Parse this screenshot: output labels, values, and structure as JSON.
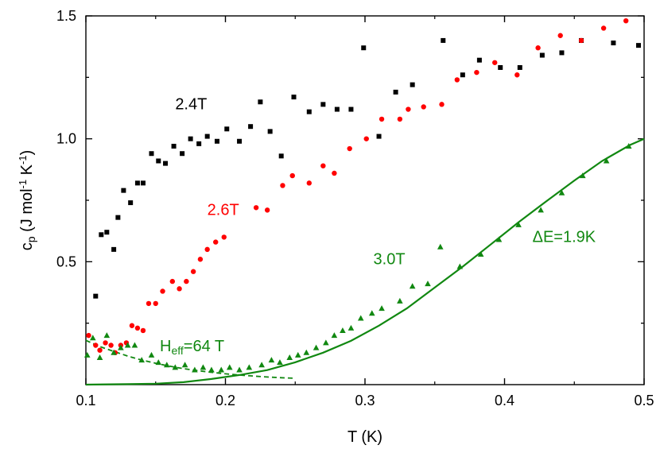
{
  "chart_data": {
    "type": "scatter",
    "xlabel": "T (K)",
    "ylabel": "c",
    "ylabel_sub": "p",
    "ylabel_units": " (J mol",
    "ylabel_sup1": "-1",
    "ylabel_mid": " K",
    "ylabel_sup2": "-1",
    "ylabel_close": ")",
    "xlim": [
      0.1,
      0.5
    ],
    "ylim": [
      0.0,
      1.5
    ],
    "x_ticks": [
      {
        "value": 0.1,
        "label": "0.1"
      },
      {
        "value": 0.2,
        "label": "0.2"
      },
      {
        "value": 0.3,
        "label": "0.3"
      },
      {
        "value": 0.4,
        "label": "0.4"
      },
      {
        "value": 0.5,
        "label": "0.5"
      }
    ],
    "y_ticks": [
      {
        "value": 0.5,
        "label": "0.5"
      },
      {
        "value": 1.0,
        "label": "1.0"
      },
      {
        "value": 1.5,
        "label": "1.5"
      }
    ],
    "series": [
      {
        "name": "2.4T",
        "marker": "square",
        "color": "#000000",
        "points": [
          [
            0.107,
            0.36
          ],
          [
            0.111,
            0.61
          ],
          [
            0.115,
            0.62
          ],
          [
            0.12,
            0.55
          ],
          [
            0.123,
            0.68
          ],
          [
            0.127,
            0.79
          ],
          [
            0.132,
            0.74
          ],
          [
            0.137,
            0.82
          ],
          [
            0.141,
            0.82
          ],
          [
            0.147,
            0.94
          ],
          [
            0.152,
            0.91
          ],
          [
            0.157,
            0.9
          ],
          [
            0.163,
            0.97
          ],
          [
            0.169,
            0.94
          ],
          [
            0.175,
            1.0
          ],
          [
            0.181,
            0.98
          ],
          [
            0.187,
            1.01
          ],
          [
            0.194,
            0.99
          ],
          [
            0.201,
            1.04
          ],
          [
            0.21,
            0.99
          ],
          [
            0.218,
            1.05
          ],
          [
            0.225,
            1.15
          ],
          [
            0.232,
            1.03
          ],
          [
            0.24,
            0.93
          ],
          [
            0.249,
            1.17
          ],
          [
            0.26,
            1.11
          ],
          [
            0.27,
            1.14
          ],
          [
            0.28,
            1.12
          ],
          [
            0.29,
            1.12
          ],
          [
            0.299,
            1.37
          ],
          [
            0.31,
            1.01
          ],
          [
            0.322,
            1.19
          ],
          [
            0.334,
            1.22
          ],
          [
            0.356,
            1.4
          ],
          [
            0.37,
            1.26
          ],
          [
            0.382,
            1.32
          ],
          [
            0.397,
            1.29
          ],
          [
            0.411,
            1.29
          ],
          [
            0.427,
            1.34
          ],
          [
            0.441,
            1.35
          ],
          [
            0.455,
            1.4
          ],
          [
            0.478,
            1.39
          ],
          [
            0.496,
            1.38
          ]
        ]
      },
      {
        "name": "2.6T",
        "marker": "circle",
        "color": "#ff0000",
        "points": [
          [
            0.102,
            0.2
          ],
          [
            0.107,
            0.16
          ],
          [
            0.11,
            0.14
          ],
          [
            0.114,
            0.17
          ],
          [
            0.118,
            0.16
          ],
          [
            0.121,
            0.13
          ],
          [
            0.125,
            0.16
          ],
          [
            0.129,
            0.17
          ],
          [
            0.133,
            0.24
          ],
          [
            0.137,
            0.23
          ],
          [
            0.141,
            0.22
          ],
          [
            0.145,
            0.33
          ],
          [
            0.15,
            0.33
          ],
          [
            0.155,
            0.38
          ],
          [
            0.162,
            0.42
          ],
          [
            0.167,
            0.39
          ],
          [
            0.172,
            0.42
          ],
          [
            0.177,
            0.46
          ],
          [
            0.182,
            0.51
          ],
          [
            0.187,
            0.55
          ],
          [
            0.193,
            0.58
          ],
          [
            0.199,
            0.6
          ],
          [
            0.222,
            0.72
          ],
          [
            0.23,
            0.71
          ],
          [
            0.241,
            0.81
          ],
          [
            0.248,
            0.85
          ],
          [
            0.26,
            0.82
          ],
          [
            0.27,
            0.89
          ],
          [
            0.278,
            0.86
          ],
          [
            0.289,
            0.96
          ],
          [
            0.301,
            1.0
          ],
          [
            0.312,
            1.08
          ],
          [
            0.325,
            1.08
          ],
          [
            0.331,
            1.12
          ],
          [
            0.342,
            1.13
          ],
          [
            0.355,
            1.14
          ],
          [
            0.366,
            1.24
          ],
          [
            0.38,
            1.27
          ],
          [
            0.393,
            1.31
          ],
          [
            0.409,
            1.26
          ],
          [
            0.424,
            1.37
          ],
          [
            0.44,
            1.42
          ],
          [
            0.455,
            1.4
          ],
          [
            0.471,
            1.45
          ],
          [
            0.487,
            1.48
          ]
        ]
      },
      {
        "name": "3.0T",
        "marker": "triangle",
        "color": "#118811",
        "points": [
          [
            0.101,
            0.12
          ],
          [
            0.105,
            0.19
          ],
          [
            0.11,
            0.11
          ],
          [
            0.115,
            0.2
          ],
          [
            0.12,
            0.13
          ],
          [
            0.125,
            0.15
          ],
          [
            0.13,
            0.16
          ],
          [
            0.135,
            0.16
          ],
          [
            0.14,
            0.1
          ],
          [
            0.147,
            0.12
          ],
          [
            0.152,
            0.09
          ],
          [
            0.158,
            0.08
          ],
          [
            0.164,
            0.07
          ],
          [
            0.171,
            0.08
          ],
          [
            0.178,
            0.06
          ],
          [
            0.184,
            0.07
          ],
          [
            0.19,
            0.06
          ],
          [
            0.197,
            0.06
          ],
          [
            0.203,
            0.07
          ],
          [
            0.21,
            0.06
          ],
          [
            0.217,
            0.07
          ],
          [
            0.226,
            0.08
          ],
          [
            0.233,
            0.1
          ],
          [
            0.239,
            0.09
          ],
          [
            0.246,
            0.11
          ],
          [
            0.252,
            0.12
          ],
          [
            0.258,
            0.13
          ],
          [
            0.265,
            0.15
          ],
          [
            0.272,
            0.17
          ],
          [
            0.278,
            0.2
          ],
          [
            0.284,
            0.22
          ],
          [
            0.29,
            0.23
          ],
          [
            0.297,
            0.27
          ],
          [
            0.305,
            0.29
          ],
          [
            0.312,
            0.31
          ],
          [
            0.325,
            0.34
          ],
          [
            0.334,
            0.4
          ],
          [
            0.345,
            0.41
          ],
          [
            0.354,
            0.56
          ],
          [
            0.368,
            0.48
          ],
          [
            0.383,
            0.53
          ],
          [
            0.396,
            0.59
          ],
          [
            0.41,
            0.65
          ],
          [
            0.426,
            0.71
          ],
          [
            0.441,
            0.78
          ],
          [
            0.456,
            0.85
          ],
          [
            0.473,
            0.91
          ],
          [
            0.489,
            0.97
          ]
        ]
      }
    ],
    "fits": [
      {
        "name": "ΔE=1.9K",
        "style": "solid",
        "color": "#118811",
        "points": [
          [
            0.1,
            0.0
          ],
          [
            0.13,
            0.002
          ],
          [
            0.15,
            0.004
          ],
          [
            0.17,
            0.01
          ],
          [
            0.19,
            0.023
          ],
          [
            0.21,
            0.039
          ],
          [
            0.23,
            0.059
          ],
          [
            0.25,
            0.091
          ],
          [
            0.27,
            0.13
          ],
          [
            0.29,
            0.178
          ],
          [
            0.31,
            0.24
          ],
          [
            0.33,
            0.31
          ],
          [
            0.35,
            0.395
          ],
          [
            0.37,
            0.48
          ],
          [
            0.39,
            0.57
          ],
          [
            0.41,
            0.66
          ],
          [
            0.43,
            0.746
          ],
          [
            0.45,
            0.83
          ],
          [
            0.47,
            0.91
          ],
          [
            0.49,
            0.975
          ],
          [
            0.5,
            1.0
          ]
        ]
      },
      {
        "name": "H",
        "name_sub": "eff",
        "name_rest": "=64 T",
        "style": "dashed",
        "color": "#118811",
        "points": [
          [
            0.1,
            0.18
          ],
          [
            0.11,
            0.155
          ],
          [
            0.12,
            0.135
          ],
          [
            0.13,
            0.116
          ],
          [
            0.14,
            0.1
          ],
          [
            0.15,
            0.087
          ],
          [
            0.16,
            0.075
          ],
          [
            0.17,
            0.065
          ],
          [
            0.18,
            0.057
          ],
          [
            0.19,
            0.05
          ],
          [
            0.2,
            0.044
          ],
          [
            0.21,
            0.039
          ],
          [
            0.22,
            0.035
          ],
          [
            0.23,
            0.031
          ],
          [
            0.24,
            0.028
          ],
          [
            0.25,
            0.026
          ]
        ]
      }
    ],
    "annotations": [
      {
        "text": "2.4T",
        "x": 0.164,
        "y": 1.12,
        "color": "#000000"
      },
      {
        "text": "2.6T",
        "x": 0.187,
        "y": 0.69,
        "color": "#ff0000"
      },
      {
        "text": "3.0T",
        "x": 0.306,
        "y": 0.49,
        "color": "#118811"
      },
      {
        "text": "ΔE=1.9K",
        "x": 0.42,
        "y": 0.58,
        "color": "#118811"
      }
    ],
    "heff_label_pos": {
      "x": 0.153,
      "y": 0.135
    },
    "grid": false,
    "legend": "none"
  }
}
